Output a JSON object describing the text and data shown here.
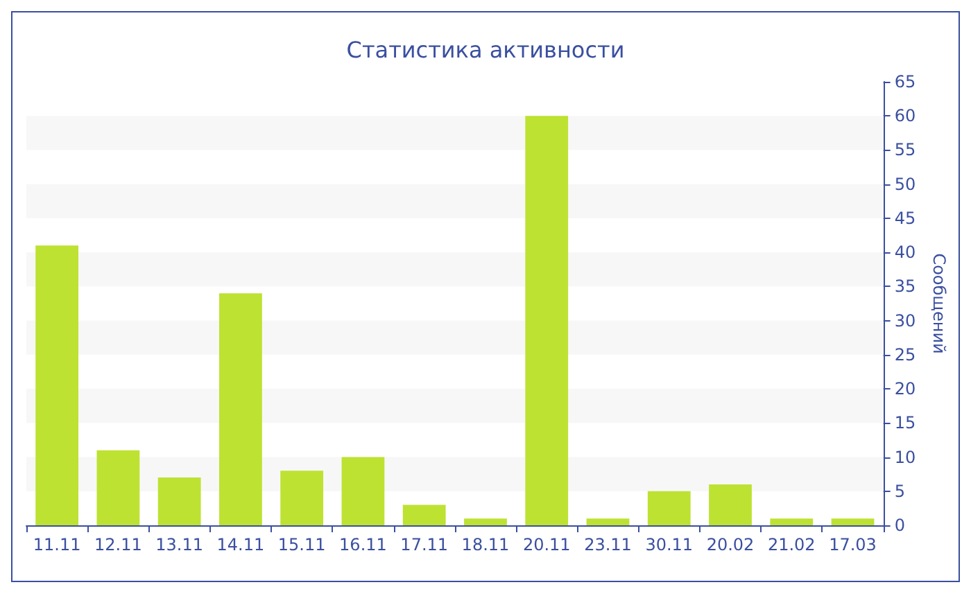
{
  "chart_data": {
    "type": "bar",
    "title": "Статистика активности",
    "ylabel": "Сообщений",
    "categories": [
      "11.11",
      "12.11",
      "13.11",
      "14.11",
      "15.11",
      "16.11",
      "17.11",
      "18.11",
      "20.11",
      "23.11",
      "30.11",
      "20.02",
      "21.02",
      "17.03"
    ],
    "values": [
      41,
      11,
      7,
      34,
      8,
      10,
      3,
      1,
      60,
      1,
      5,
      6,
      1,
      1
    ],
    "color": "#bde232",
    "ylim": [
      0,
      65
    ],
    "yticks": [
      0,
      5,
      10,
      15,
      20,
      25,
      30,
      35,
      40,
      45,
      50,
      55,
      60,
      65
    ],
    "bands": [
      {
        "axis": "y",
        "from": 5,
        "to": 10,
        "color": "#f7f7f7"
      },
      {
        "axis": "y",
        "from": 15,
        "to": 20,
        "color": "#f7f7f7"
      },
      {
        "axis": "y",
        "from": 25,
        "to": 30,
        "color": "#f7f7f7"
      },
      {
        "axis": "y",
        "from": 35,
        "to": 40,
        "color": "#f7f7f7"
      },
      {
        "axis": "y",
        "from": 45,
        "to": 50,
        "color": "#f7f7f7"
      },
      {
        "axis": "y",
        "from": 55,
        "to": 60,
        "color": "#f7f7f7"
      }
    ]
  }
}
